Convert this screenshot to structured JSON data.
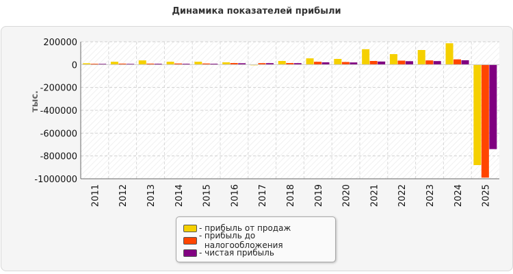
{
  "chart_data": {
    "type": "bar",
    "title": "Динамика показателей прибыли",
    "xlabel": "",
    "ylabel": "тыс.",
    "categories": [
      "2011",
      "2012",
      "2013",
      "2014",
      "2015",
      "2016",
      "2017",
      "2018",
      "2019",
      "2020",
      "2021",
      "2022",
      "2023",
      "2024",
      "2025"
    ],
    "series": [
      {
        "name": "прибыль от продаж",
        "color": "#f5d000",
        "values": [
          12000,
          25000,
          37000,
          25000,
          25000,
          20000,
          -5000,
          32000,
          55000,
          50000,
          135000,
          92000,
          128000,
          187000,
          -880000
        ]
      },
      {
        "name": "прибыль до налогообложения",
        "color": "#ff4500",
        "values": [
          8000,
          9000,
          9000,
          10000,
          10000,
          14000,
          13000,
          14000,
          25000,
          23000,
          32000,
          35000,
          37000,
          46000,
          -990000
        ]
      },
      {
        "name": "чистая прибыль",
        "color": "#800080",
        "values": [
          7000,
          7000,
          8000,
          8000,
          8000,
          12000,
          13000,
          13000,
          20000,
          19000,
          27000,
          30000,
          31000,
          38000,
          -740000
        ]
      }
    ],
    "yticks": [
      200000,
      0,
      -200000,
      -400000,
      -600000,
      -800000,
      -1000000
    ],
    "ylim": [
      -1000000,
      200000
    ],
    "grid": true,
    "legend_position": "bottom-center"
  }
}
